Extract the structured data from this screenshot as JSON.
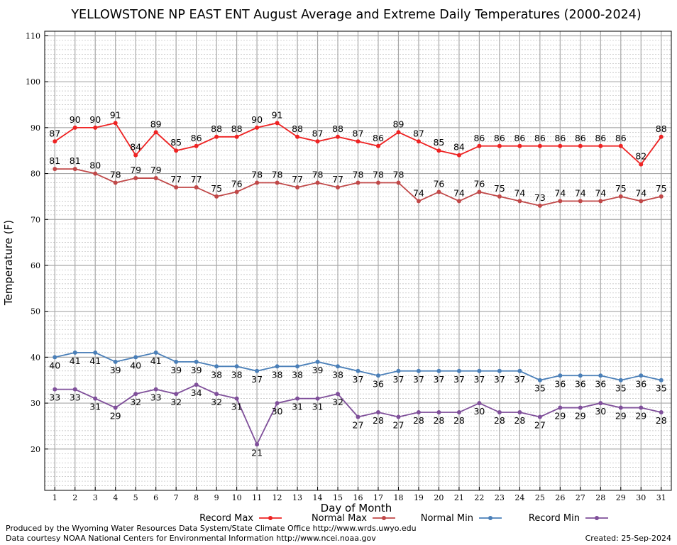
{
  "chart_data": {
    "type": "line",
    "title": "YELLOWSTONE NP EAST ENT August Average and Extreme Daily Temperatures (2000-2024)",
    "xlabel": "Day of Month",
    "ylabel": "Temperature (F)",
    "xlim": [
      0.5,
      31.5
    ],
    "ylim": [
      11,
      111
    ],
    "y_ticks": [
      20,
      30,
      40,
      50,
      60,
      70,
      80,
      90,
      100,
      110
    ],
    "x": [
      1,
      2,
      3,
      4,
      5,
      6,
      7,
      8,
      9,
      10,
      11,
      12,
      13,
      14,
      15,
      16,
      17,
      18,
      19,
      20,
      21,
      22,
      23,
      24,
      25,
      26,
      27,
      28,
      29,
      30,
      31
    ],
    "grid": true,
    "legend_position": "bottom",
    "series": [
      {
        "name": "Record Max",
        "color": "#ee2222",
        "label_pos": "above",
        "values": [
          87,
          90,
          90,
          91,
          84,
          89,
          85,
          86,
          88,
          88,
          90,
          91,
          88,
          87,
          88,
          87,
          86,
          89,
          87,
          85,
          84,
          86,
          86,
          86,
          86,
          86,
          86,
          86,
          86,
          82,
          88
        ]
      },
      {
        "name": "Normal Max",
        "color": "#c04848",
        "label_pos": "above",
        "values": [
          81,
          81,
          80,
          78,
          79,
          79,
          77,
          77,
          75,
          76,
          78,
          78,
          77,
          78,
          77,
          78,
          78,
          78,
          74,
          76,
          74,
          76,
          75,
          74,
          73,
          74,
          74,
          74,
          75,
          74,
          75
        ]
      },
      {
        "name": "Normal Min",
        "color": "#4a7fb8",
        "label_pos": "below",
        "values": [
          40,
          41,
          41,
          39,
          40,
          41,
          39,
          39,
          38,
          38,
          37,
          38,
          38,
          39,
          38,
          37,
          36,
          37,
          37,
          37,
          37,
          37,
          37,
          37,
          35,
          36,
          36,
          36,
          35,
          36,
          35
        ]
      },
      {
        "name": "Record Min",
        "color": "#7f4f9a",
        "label_pos": "below",
        "values": [
          33,
          33,
          31,
          29,
          32,
          33,
          32,
          34,
          32,
          31,
          21,
          30,
          31,
          31,
          32,
          27,
          28,
          27,
          28,
          28,
          28,
          30,
          28,
          28,
          27,
          29,
          29,
          30,
          29,
          29,
          28
        ]
      }
    ]
  },
  "footer": {
    "produced_by": "Produced by the Wyoming Water Resources Data System/State Climate Office http://www.wrds.uwyo.edu",
    "courtesy": "Data courtesy NOAA National Centers for Environmental Information http://www.ncei.noaa.gov",
    "created": "Created:  25-Sep-2024"
  }
}
